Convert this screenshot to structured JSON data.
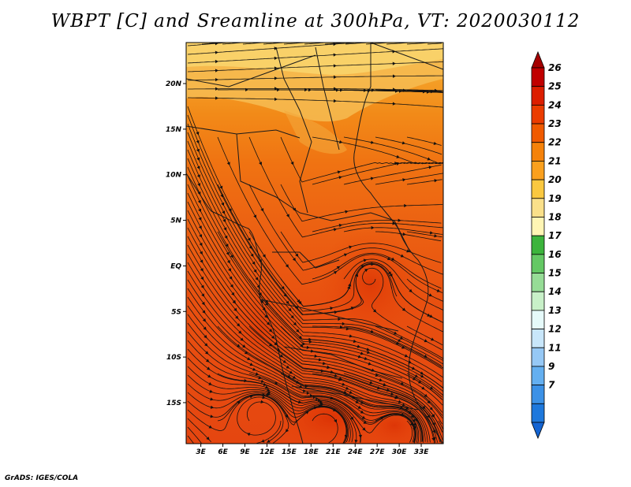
{
  "title": "WBPT [C] and Sreamline at 300hPa, VT: 2020030112",
  "footer": "GrADS: IGES/COLA",
  "map": {
    "lon_labels": [
      "3E",
      "6E",
      "9E",
      "12E",
      "15E",
      "18E",
      "21E",
      "24E",
      "27E",
      "30E",
      "33E"
    ],
    "lat_labels": [
      "20N",
      "15N",
      "10N",
      "5N",
      "EQ",
      "5S",
      "10S",
      "15S"
    ],
    "lon_range_deg": [
      1,
      36
    ],
    "lat_range_deg": [
      -19.5,
      24.5
    ],
    "field": "wet-bulb potential temperature at 300hPa",
    "overlay": "streamlines with arrow heads"
  },
  "colorbar": {
    "labels": [
      "26",
      "25",
      "24",
      "23",
      "22",
      "21",
      "20",
      "19",
      "18",
      "17",
      "16",
      "15",
      "14",
      "13",
      "12",
      "11",
      "9",
      "7"
    ],
    "colors": [
      "#a50000",
      "#c00000",
      "#dc1e00",
      "#eb3c00",
      "#f05a00",
      "#f5820a",
      "#faa01e",
      "#fac840",
      "#fae08a",
      "#fff5b4",
      "#3cb43c",
      "#64c864",
      "#96dc96",
      "#c8f0c8",
      "#e6fafa",
      "#c8e6fa",
      "#96c8f5",
      "#64aff0",
      "#3c91e6",
      "#1e78dc",
      "#1464d2"
    ]
  }
}
